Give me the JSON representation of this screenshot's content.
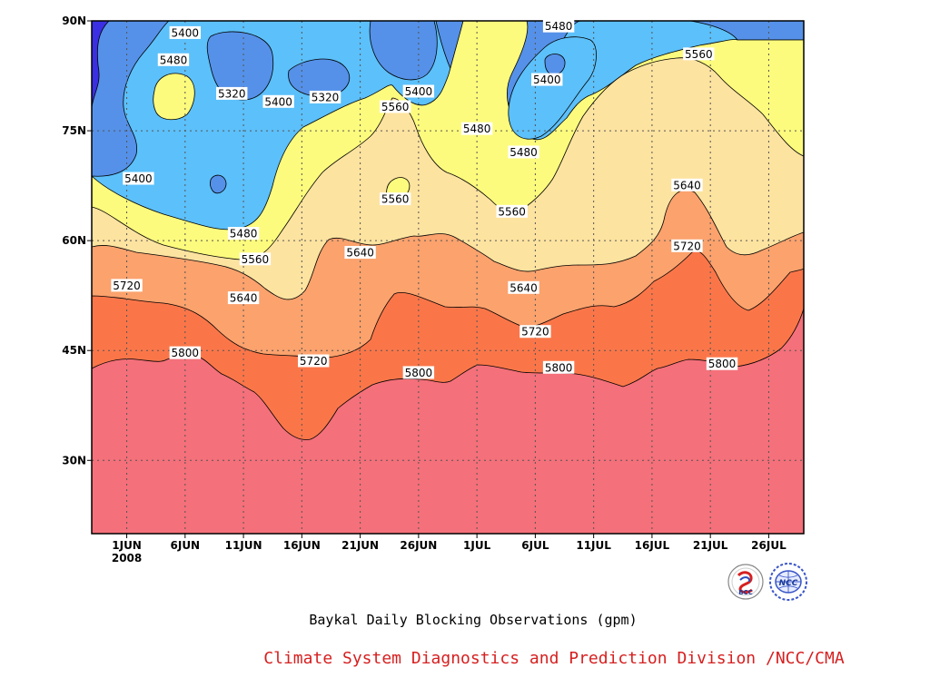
{
  "chart_data": {
    "type": "contour",
    "title": "Baykal Daily Blocking Observations (gpm)",
    "credit": "Climate System Diagnostics and Prediction Division /NCC/CMA",
    "x_axis": {
      "start_day": "2008-05-29",
      "end_day": "2008-07-29",
      "ticks": [
        {
          "label": "1JUN",
          "sub": "2008",
          "date": "2008-06-01"
        },
        {
          "label": "6JUN",
          "sub": "",
          "date": "2008-06-06"
        },
        {
          "label": "11JUN",
          "sub": "",
          "date": "2008-06-11"
        },
        {
          "label": "16JUN",
          "sub": "",
          "date": "2008-06-16"
        },
        {
          "label": "21JUN",
          "sub": "",
          "date": "2008-06-21"
        },
        {
          "label": "26JUN",
          "sub": "",
          "date": "2008-06-26"
        },
        {
          "label": "1JUL",
          "sub": "",
          "date": "2008-07-01"
        },
        {
          "label": "6JUL",
          "sub": "",
          "date": "2008-07-06"
        },
        {
          "label": "11JUL",
          "sub": "",
          "date": "2008-07-11"
        },
        {
          "label": "16JUL",
          "sub": "",
          "date": "2008-07-16"
        },
        {
          "label": "21JUL",
          "sub": "",
          "date": "2008-07-21"
        },
        {
          "label": "26JUL",
          "sub": "",
          "date": "2008-07-26"
        }
      ]
    },
    "y_axis": {
      "range": [
        20,
        90
      ],
      "ticks": [
        {
          "label": "30N",
          "lat": 30
        },
        {
          "label": "45N",
          "lat": 45
        },
        {
          "label": "60N",
          "lat": 60
        },
        {
          "label": "75N",
          "lat": 75
        },
        {
          "label": "90N",
          "lat": 90
        }
      ]
    },
    "grid": true,
    "colors": {
      "below_5320": "#3b2fe3",
      "5320_5400": "#5591e8",
      "5400_5480": "#5cc0fa",
      "5480_5560": "#fdfb7d",
      "5560_5640": "#fde3a0",
      "5640_5720": "#fba26d",
      "5720_5800": "#fa7649",
      "above_5800": "#f4707a"
    },
    "contour_labels": [
      {
        "text": "5400",
        "date": "2008-06-06",
        "lat": 88.4
      },
      {
        "text": "5480",
        "date": "2008-06-05",
        "lat": 84.7
      },
      {
        "text": "5320",
        "date": "2008-06-10",
        "lat": 80.1
      },
      {
        "text": "5400",
        "date": "2008-06-14",
        "lat": 79.0
      },
      {
        "text": "5320",
        "date": "2008-06-18",
        "lat": 79.6
      },
      {
        "text": "5400",
        "date": "2008-06-26",
        "lat": 80.4
      },
      {
        "text": "5560",
        "date": "2008-06-24",
        "lat": 78.3
      },
      {
        "text": "5480",
        "date": "2008-07-01",
        "lat": 75.3
      },
      {
        "text": "5480",
        "date": "2008-07-08",
        "lat": 89.3
      },
      {
        "text": "5400",
        "date": "2008-07-07",
        "lat": 82.0
      },
      {
        "text": "5480",
        "date": "2008-07-05",
        "lat": 72.1
      },
      {
        "text": "5560",
        "date": "2008-07-20",
        "lat": 85.5
      },
      {
        "text": "5400",
        "date": "2008-06-02",
        "lat": 68.5
      },
      {
        "text": "5560",
        "date": "2008-06-24",
        "lat": 65.7
      },
      {
        "text": "5480",
        "date": "2008-06-11",
        "lat": 61.0
      },
      {
        "text": "5560",
        "date": "2008-07-04",
        "lat": 64.0
      },
      {
        "text": "5640",
        "date": "2008-07-19",
        "lat": 67.6
      },
      {
        "text": "5560",
        "date": "2008-06-12",
        "lat": 57.5
      },
      {
        "text": "5640",
        "date": "2008-06-21",
        "lat": 58.4
      },
      {
        "text": "5720",
        "date": "2008-06-01",
        "lat": 53.9
      },
      {
        "text": "5640",
        "date": "2008-06-11",
        "lat": 52.2
      },
      {
        "text": "5640",
        "date": "2008-07-05",
        "lat": 53.6
      },
      {
        "text": "5720",
        "date": "2008-07-19",
        "lat": 59.3
      },
      {
        "text": "5720",
        "date": "2008-07-06",
        "lat": 47.6
      },
      {
        "text": "5800",
        "date": "2008-06-06",
        "lat": 44.7
      },
      {
        "text": "5720",
        "date": "2008-06-17",
        "lat": 43.6
      },
      {
        "text": "5800",
        "date": "2008-06-26",
        "lat": 42.0
      },
      {
        "text": "5800",
        "date": "2008-07-08",
        "lat": 42.7
      },
      {
        "text": "5800",
        "date": "2008-07-22",
        "lat": 43.2
      }
    ]
  },
  "logos": [
    {
      "name": "bcc-logo",
      "text": "BCC"
    },
    {
      "name": "ncc-logo",
      "text": "NCC"
    }
  ]
}
